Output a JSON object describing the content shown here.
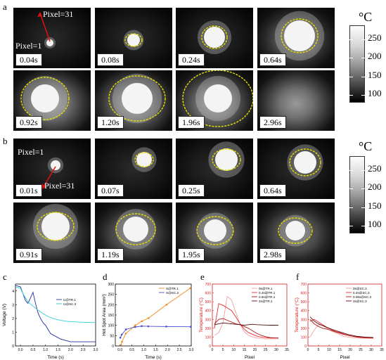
{
  "panels": {
    "a": {
      "letter": "a",
      "pixel_top": "Pixel=31",
      "pixel_bottom": "Pixel=1",
      "times": [
        "0.04s",
        "0.08s",
        "0.24s",
        "0.64s",
        "0.92s",
        "1.20s",
        "1.96s",
        "2.96s"
      ],
      "colorbar": {
        "unit": "°C",
        "ticks": [
          "250",
          "200",
          "150",
          "100"
        ]
      }
    },
    "b": {
      "letter": "b",
      "pixel_top": "Pixel=1",
      "pixel_bottom": "Pixel=31",
      "times": [
        "0.01s",
        "0.07s",
        "0.25s",
        "0.64s",
        "0.91s",
        "1.19s",
        "1.95s",
        "2.98s"
      ],
      "colorbar": {
        "unit": "°C",
        "ticks": [
          "250",
          "200",
          "150",
          "100"
        ]
      }
    }
  },
  "chart_data": [
    {
      "panel": "c",
      "type": "line",
      "xlabel": "Time (s)",
      "ylabel": "Voltage (V)",
      "xlim": [
        -0.2,
        3.0
      ],
      "ylim": [
        0,
        4.5
      ],
      "xticks": [
        "0.0",
        "0.5",
        "1.0",
        "1.5",
        "2.0",
        "2.5",
        "3.0"
      ],
      "yticks": [
        "0",
        "1",
        "2",
        "3",
        "4"
      ],
      "series": [
        {
          "name": "U@TR.1",
          "color": "#2230a0",
          "x": [
            -0.2,
            0.0,
            0.2,
            0.3,
            0.4,
            0.5,
            0.6,
            0.7,
            0.8,
            0.9,
            1.0,
            1.1,
            1.2,
            1.4,
            1.6,
            1.8,
            2.0,
            2.5,
            3.0
          ],
          "y": [
            4.4,
            4.3,
            3.3,
            3.1,
            3.5,
            3.9,
            3.1,
            2.4,
            2.0,
            1.7,
            1.5,
            1.2,
            0.9,
            0.7,
            0.5,
            0.4,
            0.3,
            0.3,
            0.3
          ]
        },
        {
          "name": "U@SC.3",
          "color": "#2ed0d0",
          "x": [
            -0.2,
            0.0,
            0.1,
            0.2,
            0.3,
            0.5,
            0.7,
            0.9,
            1.1,
            1.3,
            1.5,
            1.8,
            2.2,
            2.6,
            3.0
          ],
          "y": [
            4.3,
            4.2,
            3.8,
            3.5,
            3.2,
            2.9,
            2.6,
            2.35,
            2.15,
            2.0,
            1.9,
            1.8,
            1.75,
            1.72,
            1.7
          ]
        }
      ]
    },
    {
      "panel": "d",
      "type": "line",
      "xlabel": "Time (s)",
      "ylabel": "Hot Spot Area (mm²)",
      "xlim": [
        -0.2,
        3.0
      ],
      "ylim": [
        0,
        300
      ],
      "xticks": [
        "0.0",
        "0.5",
        "1.0",
        "1.5",
        "2.0",
        "2.5",
        "3.0"
      ],
      "yticks": [
        "0",
        "50",
        "100",
        "150",
        "200",
        "250",
        "300"
      ],
      "series": [
        {
          "name": "S@TR.1",
          "color": "#f08a1c",
          "x": [
            0.04,
            0.08,
            0.24,
            0.64,
            0.92,
            1.2,
            1.96,
            2.96
          ],
          "y": [
            5,
            20,
            60,
            100,
            120,
            135,
            200,
            280
          ]
        },
        {
          "name": "S@SC.3",
          "color": "#4a4acf",
          "x": [
            0.01,
            0.07,
            0.25,
            0.64,
            0.91,
            1.19,
            1.95,
            2.98
          ],
          "y": [
            40,
            55,
            80,
            92,
            96,
            95,
            94,
            93
          ]
        }
      ]
    },
    {
      "panel": "e",
      "type": "line",
      "xlabel": "Pixel",
      "ylabel": "Temperature (°C)",
      "xlim": [
        0,
        35
      ],
      "ylim": [
        0,
        700
      ],
      "xticks": [
        "0",
        "5",
        "10",
        "15",
        "20",
        "25",
        "30",
        "35"
      ],
      "yticks": [
        "0",
        "100",
        "200",
        "300",
        "400",
        "500",
        "600",
        "700"
      ],
      "series": [
        {
          "name": "0s@TR.1",
          "color": "#f4a0a0",
          "x": [
            1,
            3,
            5,
            7,
            9,
            11,
            13,
            15,
            17,
            19,
            21,
            23,
            25,
            27,
            29,
            31
          ],
          "y": [
            120,
            150,
            260,
            560,
            520,
            380,
            250,
            160,
            120,
            100,
            90,
            85,
            80,
            80,
            80,
            80
          ]
        },
        {
          "name": "0.4s@TR.1",
          "color": "#e23030",
          "x": [
            1,
            3,
            5,
            7,
            9,
            11,
            13,
            15,
            17,
            19,
            21,
            23,
            25,
            27,
            29,
            31
          ],
          "y": [
            200,
            480,
            460,
            430,
            400,
            330,
            250,
            190,
            150,
            130,
            110,
            100,
            95,
            90,
            90,
            90
          ]
        },
        {
          "name": "0.6s@TR.1",
          "color": "#b01818",
          "x": [
            1,
            3,
            5,
            7,
            9,
            11,
            13,
            15,
            17,
            19,
            21,
            23,
            25,
            27,
            29,
            31
          ],
          "y": [
            250,
            300,
            310,
            290,
            270,
            250,
            240,
            220,
            200,
            170,
            140,
            120,
            105,
            95,
            92,
            90
          ]
        },
        {
          "name": "2s@TR.1",
          "color": "#5a0808",
          "x": [
            1,
            3,
            5,
            7,
            9,
            11,
            13,
            15,
            17,
            19,
            21,
            23,
            25,
            27,
            29,
            31
          ],
          "y": [
            240,
            250,
            260,
            255,
            250,
            245,
            240,
            235,
            240,
            245,
            240,
            238,
            236,
            235,
            235,
            235
          ]
        }
      ]
    },
    {
      "panel": "f",
      "type": "line",
      "xlabel": "Pixel",
      "ylabel": "Temperature (°C)",
      "xlim": [
        0,
        35
      ],
      "ylim": [
        0,
        700
      ],
      "xticks": [
        "0",
        "5",
        "10",
        "15",
        "20",
        "25",
        "30",
        "35"
      ],
      "yticks": [
        "0",
        "100",
        "200",
        "300",
        "400",
        "500",
        "600",
        "700"
      ],
      "series": [
        {
          "name": "0s@SC.3",
          "color": "#f4a0a0",
          "x": [
            1,
            3,
            5,
            7,
            9,
            11,
            13,
            15,
            17,
            19,
            21,
            23,
            25,
            27,
            29,
            31
          ],
          "y": [
            100,
            180,
            240,
            230,
            200,
            170,
            150,
            130,
            110,
            100,
            95,
            90,
            88,
            86,
            85,
            85
          ]
        },
        {
          "name": "0.4s@SC.3",
          "color": "#e23030",
          "x": [
            1,
            3,
            5,
            7,
            9,
            11,
            13,
            15,
            17,
            19,
            21,
            23,
            25,
            27,
            29,
            31
          ],
          "y": [
            280,
            300,
            270,
            240,
            210,
            185,
            165,
            150,
            135,
            120,
            110,
            100,
            95,
            92,
            90,
            90
          ]
        },
        {
          "name": "0.06s@SC.3",
          "color": "#b01818",
          "x": [
            1,
            3,
            5,
            7,
            9,
            11,
            13,
            15,
            17,
            19,
            21,
            23,
            25,
            27,
            29,
            31
          ],
          "y": [
            300,
            250,
            220,
            200,
            190,
            175,
            160,
            145,
            130,
            120,
            110,
            105,
            100,
            98,
            96,
            95
          ]
        },
        {
          "name": "2s@SC.3",
          "color": "#5a0808",
          "x": [
            1,
            3,
            5,
            7,
            9,
            11,
            13,
            15,
            17,
            19,
            21,
            23,
            25,
            27,
            29,
            31
          ],
          "y": [
            330,
            280,
            250,
            230,
            210,
            190,
            175,
            160,
            145,
            130,
            120,
            110,
            105,
            100,
            98,
            96
          ]
        }
      ]
    }
  ]
}
